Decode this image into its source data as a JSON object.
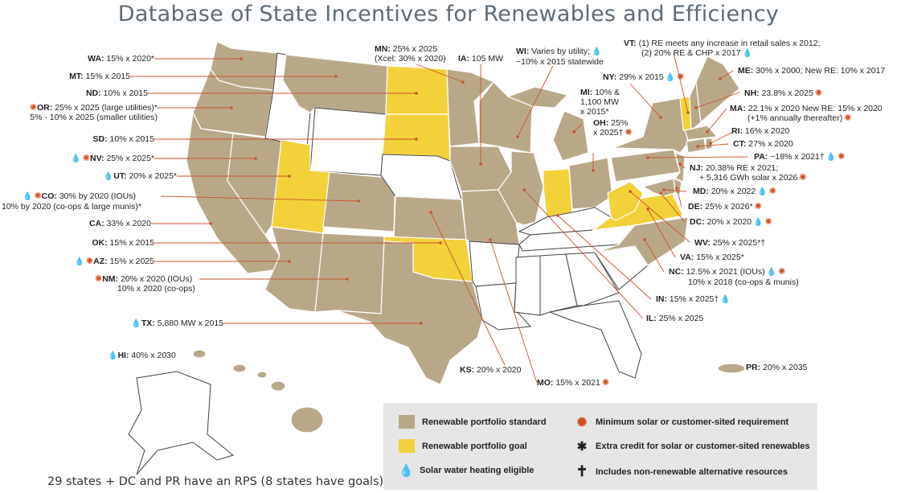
{
  "title": "Database of State Incentives for Renewables and Efficiency",
  "footnote": "29 states + DC and PR have an RPS (8 states have goals)",
  "colors": {
    "rps": "#b9a888",
    "goal": "#f2d13a",
    "none": "#ffffff",
    "leader": "#c9532c",
    "legend_bg": "#e6e6e6"
  },
  "legend": {
    "rps": "Renewable portfolio standard",
    "goal": "Renewable portfolio goal",
    "solar_water": "Solar water heating eligible",
    "min_solar": "Minimum solar or customer-sited requirement",
    "extra_credit": "Extra credit for solar or customer-sited renewables",
    "non_renewable": "Includes non-renewable alternative resources",
    "icons": {
      "solar_water": "drop-icon",
      "min_solar": "sun-icon",
      "extra_credit": "asterisk-icon",
      "non_renewable": "dagger-icon"
    }
  },
  "states": {
    "WA": {
      "code": "WA:",
      "text": "15% x 2020*"
    },
    "MT": {
      "code": "MT:",
      "text": "15% x 2015"
    },
    "ND": {
      "code": "ND:",
      "text": "10% x 2015"
    },
    "OR": {
      "code": "OR:",
      "text": "25% x 2025 (large utilities)*",
      "text2": "5% - 10% x 2025 (smaller utilities)"
    },
    "SD": {
      "code": "SD:",
      "text": "10% x 2015"
    },
    "NV": {
      "code": "NV:",
      "text": "25% x 2025*"
    },
    "UT": {
      "code": "UT:",
      "text": "20% x 2025*"
    },
    "CO": {
      "code": "CO:",
      "text": "30% by 2020 (IOUs)",
      "text2": "10% by 2020 (co-ops & large munis)*"
    },
    "CA": {
      "code": "CA:",
      "text": "33% x 2020"
    },
    "OK": {
      "code": "OK:",
      "text": "15% x 2015"
    },
    "AZ": {
      "code": "AZ:",
      "text": "15% x 2025"
    },
    "NM": {
      "code": "NM:",
      "text": "20% x 2020 (IOUs)",
      "text2": "10% x 2020 (co-ops)"
    },
    "TX": {
      "code": "TX:",
      "text": "5,880 MW x 2015"
    },
    "HI": {
      "code": "HI:",
      "text": "40% x 2030"
    },
    "MN": {
      "code": "MN:",
      "text": "25% x 2025",
      "text2": "(Xcel: 30% x 2020)"
    },
    "IA": {
      "code": "IA:",
      "text": "105 MW"
    },
    "WI": {
      "code": "WI:",
      "text": "Varies by utility;",
      "text2": "~10% x 2015 statewide"
    },
    "MI": {
      "code": "MI:",
      "text": "10% &",
      "text2": "1,100 MW",
      "text3": "x 2015*"
    },
    "OH": {
      "code": "OH:",
      "text": "25%",
      "text2": "x 2025†"
    },
    "VT": {
      "code": "VT:",
      "text": "(1) RE meets any increase in retail sales x 2012;",
      "text2": "(2) 20% RE & CHP x 2017"
    },
    "ME": {
      "code": "ME:",
      "text": "30% x 2000; New RE: 10% x 2017"
    },
    "NY": {
      "code": "NY:",
      "text": "29% x 2015"
    },
    "NH": {
      "code": "NH:",
      "text": "23.8% x 2025"
    },
    "MA": {
      "code": "MA:",
      "text": "22.1% x 2020 New RE: 15% x 2020",
      "text2": "(+1% annually thereafter)"
    },
    "RI": {
      "code": "RI:",
      "text": "16% x 2020"
    },
    "CT": {
      "code": "CT:",
      "text": "27% x 2020"
    },
    "PA": {
      "code": "PA:",
      "text": "~18% x 2021†"
    },
    "NJ": {
      "code": "NJ:",
      "text": "20.38% RE x 2021;",
      "text2": "+ 5,316 GWh solar x 2026"
    },
    "MD": {
      "code": "MD:",
      "text": "20% x 2022"
    },
    "DE": {
      "code": "DE:",
      "text": "25% x 2026*"
    },
    "DC": {
      "code": "DC:",
      "text": "20% x 2020"
    },
    "WV": {
      "code": "WV:",
      "text": "25% x 2025*†"
    },
    "VA": {
      "code": "VA:",
      "text": "15% x 2025*"
    },
    "NC": {
      "code": "NC:",
      "text": "12.5% x 2021 (IOUs)",
      "text2": "10% x 2018 (co-ops & munis)"
    },
    "IN": {
      "code": "IN:",
      "text": "15% x 2025†"
    },
    "IL": {
      "code": "IL:",
      "text": "25% x 2025"
    },
    "KS": {
      "code": "KS:",
      "text": "20% x 2020"
    },
    "MO": {
      "code": "MO:",
      "text": "15% x 2021"
    },
    "PR": {
      "code": "PR:",
      "text": "20% x 2035"
    }
  }
}
